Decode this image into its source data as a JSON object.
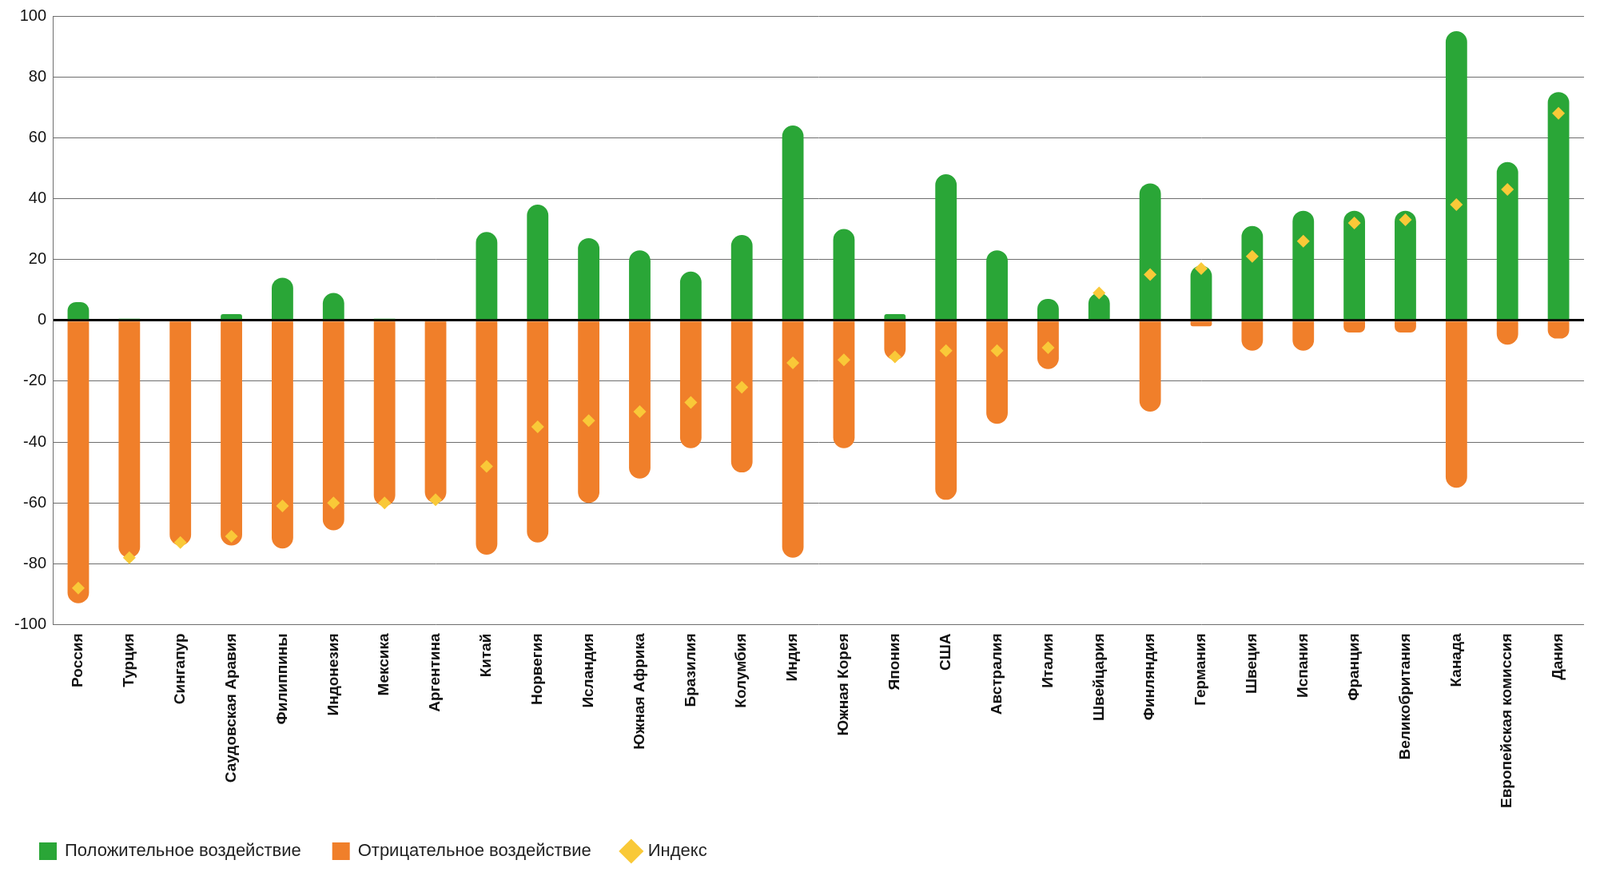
{
  "chart_data": {
    "type": "bar",
    "categories": [
      "Россия",
      "Турция",
      "Сингапур",
      "Саудовская Аравия",
      "Филиппины",
      "Индонезия",
      "Мексика",
      "Аргентина",
      "Китай",
      "Норвегия",
      "Исландия",
      "Южная Африка",
      "Бразилия",
      "Колумбия",
      "Индия",
      "Южная Корея",
      "Япония",
      "США",
      "Австралия",
      "Италия",
      "Швейцария",
      "Финляндия",
      "Германия",
      "Швеция",
      "Испания",
      "Франция",
      "Великобритания",
      "Канада",
      "Европейская комиссия",
      "Дания"
    ],
    "series": [
      {
        "name": "Положительное воздействие",
        "color": "#2aa637",
        "values": [
          6,
          0.5,
          0,
          2,
          14,
          9,
          0.5,
          0,
          29,
          38,
          27,
          23,
          16,
          28,
          64,
          30,
          2,
          48,
          23,
          7,
          9,
          45,
          18,
          31,
          36,
          36,
          36,
          95,
          52,
          75
        ]
      },
      {
        "name": "Отрицательное воздействие",
        "color": "#f07f2a",
        "values": [
          -93,
          -78,
          -74,
          -74,
          -75,
          -69,
          -61,
          -60,
          -77,
          -73,
          -60,
          -52,
          -42,
          -50,
          -78,
          -42,
          -13,
          -59,
          -34,
          -16,
          0,
          -30,
          -2,
          -10,
          -10,
          -4,
          -4,
          -55,
          -8,
          -6
        ]
      },
      {
        "name": "Индекс",
        "color": "#f9c938",
        "type": "scatter",
        "marker": "diamond",
        "values": [
          -88,
          -78,
          -73,
          -71,
          -61,
          -60,
          -60,
          -59,
          -48,
          -35,
          -33,
          -30,
          -27,
          -22,
          -14,
          -13,
          -12,
          -10,
          -10,
          -9,
          9,
          15,
          17,
          21,
          26,
          32,
          33,
          38,
          43,
          68
        ]
      }
    ],
    "ylim": [
      -100,
      100
    ],
    "yticks": [
      -100,
      -80,
      -60,
      -40,
      -20,
      0,
      20,
      40,
      60,
      80,
      100
    ],
    "grid": true,
    "legend": "bottom-left"
  }
}
